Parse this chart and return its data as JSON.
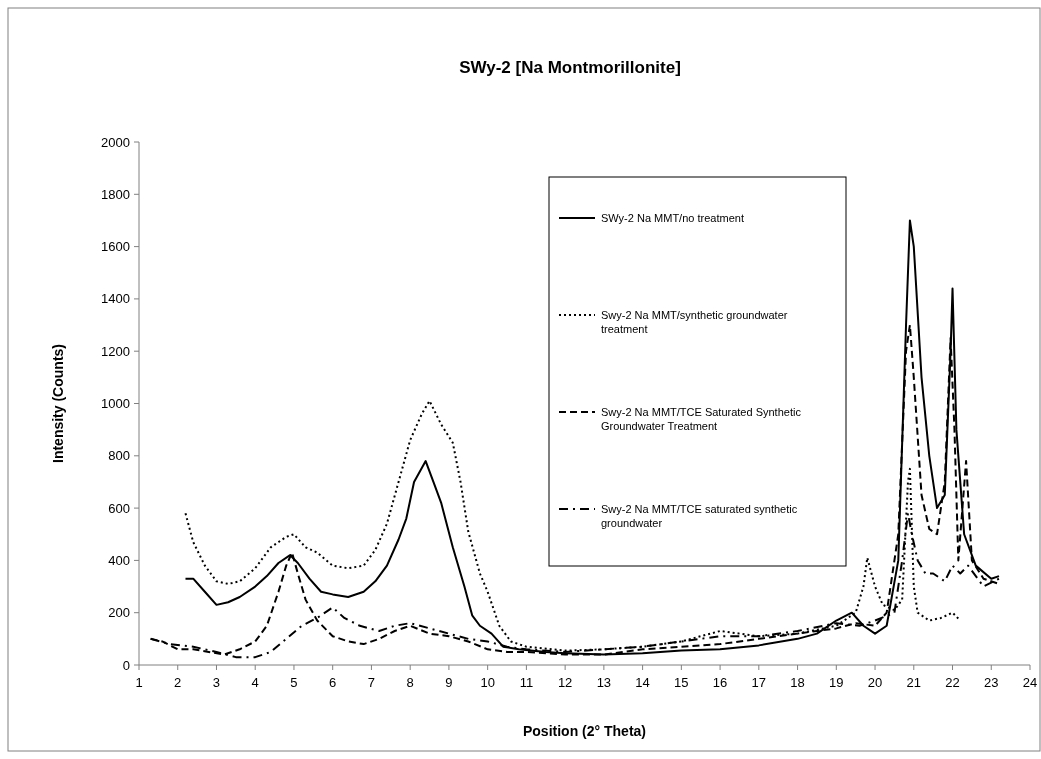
{
  "chart_data": {
    "type": "line",
    "title": "SWy-2 [Na Montmorillonite]",
    "xlabel": "Position (2° Theta)",
    "ylabel": "Intensity (Counts)",
    "xlim": [
      1,
      24
    ],
    "xticks": [
      1,
      2,
      3,
      4,
      5,
      6,
      7,
      8,
      9,
      10,
      11,
      12,
      13,
      14,
      15,
      16,
      17,
      18,
      19,
      20,
      21,
      22,
      23,
      24
    ],
    "ylim": [
      0,
      2000
    ],
    "yticks": [
      0,
      200,
      400,
      600,
      800,
      1000,
      1200,
      1400,
      1600,
      1800,
      2000
    ],
    "grid": false,
    "legend": "top right",
    "series": [
      {
        "name": "SWy-2 Na MMT/no treatment",
        "color": "#000000",
        "line_style": "solid",
        "x": [
          2.2,
          2.4,
          2.7,
          3.0,
          3.3,
          3.6,
          4.0,
          4.3,
          4.6,
          4.9,
          5.1,
          5.4,
          5.7,
          6.0,
          6.4,
          6.8,
          7.1,
          7.4,
          7.7,
          7.9,
          8.1,
          8.4,
          8.6,
          8.8,
          9.1,
          9.4,
          9.6,
          9.8,
          10.1,
          10.4,
          10.8,
          11.5,
          12,
          13,
          14,
          15,
          16,
          17,
          18,
          18.5,
          19,
          19.4,
          19.7,
          20,
          20.3,
          20.6,
          20.8,
          20.9,
          21.0,
          21.2,
          21.4,
          21.6,
          21.8,
          21.95,
          22.0,
          22.1,
          22.3,
          22.6,
          23.0,
          23.2
        ],
        "values": [
          330,
          330,
          280,
          230,
          240,
          260,
          300,
          340,
          390,
          420,
          390,
          330,
          280,
          270,
          260,
          280,
          320,
          380,
          480,
          560,
          700,
          780,
          700,
          620,
          450,
          300,
          190,
          150,
          120,
          70,
          60,
          50,
          45,
          40,
          45,
          55,
          60,
          75,
          100,
          120,
          170,
          200,
          150,
          120,
          150,
          400,
          1300,
          1700,
          1600,
          1100,
          800,
          600,
          650,
          1200,
          1440,
          900,
          500,
          380,
          330,
          340
        ]
      },
      {
        "name": "Swy-2 Na MMT/synthetic groundwater treatment",
        "color": "#000000",
        "line_style": "dotted",
        "x": [
          2.2,
          2.4,
          2.7,
          3.0,
          3.3,
          3.6,
          4.0,
          4.4,
          4.8,
          5.0,
          5.3,
          5.6,
          6.0,
          6.4,
          6.8,
          7.1,
          7.4,
          7.7,
          8.0,
          8.3,
          8.5,
          8.8,
          9.1,
          9.3,
          9.5,
          9.8,
          10.0,
          10.3,
          10.6,
          11,
          12,
          13,
          14,
          15,
          16,
          17,
          18,
          19,
          19.5,
          19.7,
          19.8,
          20.0,
          20.2,
          20.5,
          20.7,
          20.85,
          20.9,
          21.0,
          21.1,
          21.4,
          21.7,
          22.0,
          22.2
        ],
        "values": [
          580,
          470,
          380,
          320,
          310,
          320,
          370,
          450,
          490,
          500,
          450,
          430,
          380,
          370,
          380,
          440,
          540,
          700,
          860,
          960,
          1010,
          920,
          850,
          700,
          510,
          350,
          280,
          150,
          90,
          70,
          55,
          60,
          70,
          90,
          130,
          110,
          120,
          150,
          200,
          300,
          410,
          300,
          230,
          210,
          250,
          700,
          750,
          300,
          200,
          170,
          180,
          200,
          170
        ]
      },
      {
        "name": "Swy-2 Na MMT/TCE Saturated Synthetic Groundwater Treatment",
        "color": "#000000",
        "line_style": "dashed",
        "x": [
          1.3,
          1.6,
          2.0,
          2.4,
          2.8,
          3.2,
          3.6,
          4.0,
          4.3,
          4.6,
          4.8,
          4.95,
          5.1,
          5.3,
          5.6,
          6.0,
          6.4,
          6.8,
          7.2,
          7.6,
          8.0,
          8.5,
          9,
          9.5,
          10,
          10.5,
          11,
          12,
          13,
          14,
          15,
          16,
          17,
          18,
          19,
          19.5,
          20,
          20.3,
          20.6,
          20.8,
          20.9,
          21.0,
          21.2,
          21.4,
          21.6,
          21.8,
          21.95,
          22.05,
          22.15,
          22.35,
          22.5,
          22.8,
          23.2
        ],
        "values": [
          100,
          90,
          60,
          60,
          50,
          40,
          60,
          90,
          150,
          280,
          380,
          430,
          350,
          250,
          170,
          110,
          90,
          80,
          100,
          130,
          150,
          120,
          110,
          90,
          60,
          50,
          50,
          40,
          40,
          60,
          70,
          80,
          100,
          120,
          140,
          160,
          150,
          200,
          500,
          1200,
          1300,
          1100,
          650,
          520,
          500,
          700,
          1250,
          900,
          400,
          780,
          400,
          330,
          310
        ]
      },
      {
        "name": "Swy-2 Na MMT/TCE saturated synthetic groundwater",
        "color": "#000000",
        "line_style": "dashdot",
        "x": [
          1.3,
          1.8,
          2.4,
          3.0,
          3.5,
          4.0,
          4.4,
          4.8,
          5.2,
          5.6,
          6.0,
          6.3,
          6.7,
          7.2,
          7.6,
          8.0,
          8.5,
          9,
          9.5,
          10,
          10.5,
          11,
          12,
          13,
          14,
          15,
          16,
          17,
          18,
          19,
          19.6,
          20,
          20.5,
          20.7,
          20.85,
          20.95,
          21.1,
          21.3,
          21.5,
          21.7,
          21.8,
          22.0,
          22.2,
          22.4,
          22.8,
          23.2
        ],
        "values": [
          100,
          80,
          70,
          50,
          30,
          30,
          50,
          100,
          150,
          180,
          220,
          180,
          150,
          130,
          150,
          160,
          140,
          120,
          100,
          90,
          70,
          60,
          50,
          60,
          70,
          90,
          110,
          110,
          130,
          160,
          150,
          170,
          200,
          400,
          580,
          500,
          400,
          350,
          350,
          330,
          320,
          380,
          350,
          380,
          300,
          330
        ]
      }
    ]
  }
}
